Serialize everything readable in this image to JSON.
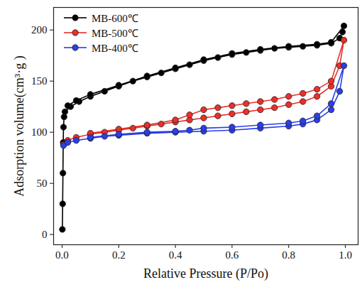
{
  "chart_data": {
    "type": "line",
    "x_label": "Relative Pressure (P/Po)",
    "y_label": "Adsorption volume(cm³·g )",
    "xlim": [
      -0.03,
      1.045
    ],
    "ylim": [
      -10,
      222
    ],
    "xticks": [
      {
        "value": 0,
        "label": "0.0"
      },
      {
        "value": 0.2,
        "label": "0.2"
      },
      {
        "value": 0.4,
        "label": "0.4"
      },
      {
        "value": 0.6,
        "label": "0.6"
      },
      {
        "value": 0.8,
        "label": "0.8"
      },
      {
        "value": 1,
        "label": "1.0"
      }
    ],
    "yticks": [
      0,
      50,
      100,
      150,
      200
    ],
    "grid": false,
    "legend": "top-left",
    "marker": "circle",
    "series": [
      {
        "name": "MB-600℃",
        "color": "#000000",
        "x": [
          0.001,
          0.002,
          0.003,
          0.004,
          0.005,
          0.007,
          0.01,
          0.03,
          0.06,
          0.1,
          0.15,
          0.2,
          0.25,
          0.3,
          0.35,
          0.4,
          0.45,
          0.5,
          0.55,
          0.6,
          0.65,
          0.7,
          0.75,
          0.8,
          0.85,
          0.9,
          0.95,
          0.98,
          0.99,
          0.995,
          0.95,
          0.9,
          0.8,
          0.7,
          0.6,
          0.5,
          0.4,
          0.3,
          0.2,
          0.1,
          0.05,
          0.02
        ],
        "values": [
          5,
          30,
          60,
          90,
          105,
          115,
          120,
          125,
          130,
          135,
          140,
          145,
          150,
          154,
          158,
          162,
          166,
          170,
          173,
          176,
          178,
          180,
          182,
          183,
          184,
          185,
          187,
          192,
          198,
          204,
          188,
          186,
          184,
          181,
          177,
          171,
          163,
          155,
          146,
          137,
          131,
          126
        ]
      },
      {
        "name": "MB-500℃",
        "color": "#e8302a",
        "x": [
          0.005,
          0.02,
          0.05,
          0.1,
          0.15,
          0.2,
          0.25,
          0.3,
          0.35,
          0.4,
          0.45,
          0.5,
          0.55,
          0.6,
          0.65,
          0.7,
          0.75,
          0.8,
          0.85,
          0.9,
          0.95,
          0.98,
          0.995,
          0.95,
          0.9,
          0.85,
          0.8,
          0.75,
          0.7,
          0.65,
          0.6,
          0.55,
          0.5,
          0.45,
          0.4,
          0.3,
          0.2,
          0.1
        ],
        "values": [
          88,
          92,
          95,
          98,
          100,
          102,
          104,
          106,
          108,
          110,
          112,
          114,
          116,
          118,
          120,
          122,
          124,
          127,
          130,
          135,
          145,
          165,
          190,
          150,
          142,
          138,
          135,
          132,
          130,
          128,
          126,
          124,
          122,
          117,
          112,
          107,
          103,
          99
        ]
      },
      {
        "name": "MB-400℃",
        "color": "#2a3ee8",
        "x": [
          0.005,
          0.02,
          0.05,
          0.1,
          0.15,
          0.2,
          0.3,
          0.4,
          0.5,
          0.6,
          0.7,
          0.8,
          0.85,
          0.9,
          0.95,
          0.98,
          0.995,
          0.95,
          0.9,
          0.85,
          0.8,
          0.7,
          0.6,
          0.5,
          0.45,
          0.4,
          0.3,
          0.2,
          0.1
        ],
        "values": [
          87,
          90,
          92,
          94,
          96,
          97,
          99,
          100,
          101,
          102,
          104,
          106,
          108,
          112,
          122,
          140,
          165,
          128,
          116,
          111,
          109,
          107,
          105,
          104,
          102,
          101,
          100,
          98,
          95
        ]
      }
    ]
  }
}
